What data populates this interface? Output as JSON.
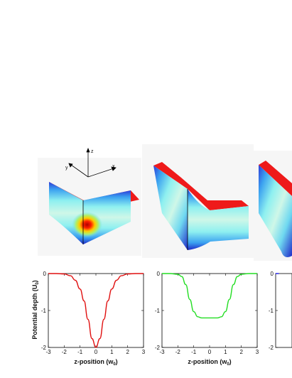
{
  "axes3d": {
    "z": "z",
    "y": "y",
    "x": "x"
  },
  "chart_data": [
    {
      "type": "line",
      "ylabel": "Potential depth (U",
      "ylabel_sub": "0",
      "ylabel_tail": ")",
      "xlabel": "z-position (w",
      "xlabel_sub": "0",
      "xlabel_tail": ")",
      "xlim": [
        -3,
        3
      ],
      "ylim": [
        -2,
        0
      ],
      "xticks": [
        "-3",
        "-2",
        "-1",
        "0",
        "1",
        "2",
        "3"
      ],
      "yticks": [
        "0",
        "-1",
        "-2"
      ],
      "color": "#e01010",
      "x": [
        -3,
        -2.5,
        -2,
        -1.6,
        -1.3,
        -1,
        -0.75,
        -0.5,
        -0.25,
        0,
        0.25,
        0.5,
        0.75,
        1,
        1.3,
        1.6,
        2,
        2.5,
        3
      ],
      "y": [
        0,
        0,
        -0.01,
        -0.06,
        -0.18,
        -0.42,
        -0.74,
        -1.24,
        -1.76,
        -2.0,
        -1.76,
        -1.24,
        -0.74,
        -0.42,
        -0.18,
        -0.06,
        -0.01,
        0,
        0
      ]
    },
    {
      "type": "line",
      "xlabel": "z-position (w",
      "xlabel_sub": "0",
      "xlabel_tail": ")",
      "xlim": [
        -3,
        3
      ],
      "ylim": [
        -2,
        0
      ],
      "xticks": [
        "-3",
        "-2",
        "-1",
        "0",
        "1",
        "2",
        "3"
      ],
      "yticks": [
        "0",
        "-1",
        "-2"
      ],
      "color": "#22dd22",
      "x": [
        -3,
        -2.5,
        -2,
        -1.75,
        -1.5,
        -1.25,
        -1,
        -0.75,
        -0.5,
        -0.25,
        0,
        0.25,
        0.5,
        0.75,
        1,
        1.25,
        1.5,
        1.75,
        2,
        2.5,
        3
      ],
      "y": [
        0,
        0,
        -0.02,
        -0.08,
        -0.3,
        -0.7,
        -1.03,
        -1.17,
        -1.2,
        -1.2,
        -1.2,
        -1.2,
        -1.2,
        -1.17,
        -1.03,
        -0.7,
        -0.3,
        -0.08,
        -0.02,
        0,
        0
      ]
    },
    {
      "type": "line",
      "xlim": [
        -3,
        3
      ],
      "ylim": [
        -2,
        0
      ],
      "yticks": [
        "0",
        "-1",
        "-2"
      ],
      "color": "#1a1aee",
      "x": [
        -3,
        -2.8
      ],
      "y": [
        0,
        0
      ]
    }
  ]
}
